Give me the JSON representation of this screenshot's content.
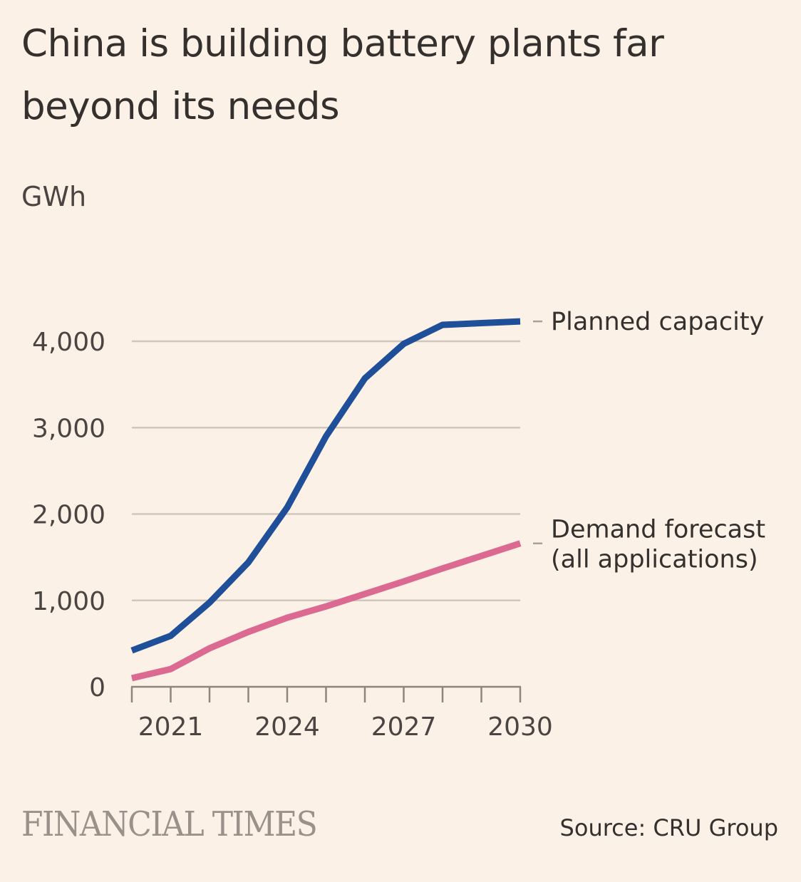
{
  "header": {
    "title": "China is building battery plants far beyond its needs",
    "unit": "GWh"
  },
  "footer": {
    "logo": "FINANCIAL TIMES",
    "source": "Source: CRU Group"
  },
  "colors": {
    "background": "#fcf1e7",
    "planned_capacity": "#1f4f98",
    "demand_forecast": "#db6991",
    "gridline": "#cfc7bb",
    "axis": "#8e857c",
    "leader": "#a8a19a"
  },
  "chart_data": {
    "type": "line",
    "title": "China is building battery plants far beyond its needs",
    "xlabel": "",
    "ylabel": "GWh",
    "x": [
      2020,
      2021,
      2022,
      2023,
      2024,
      2025,
      2026,
      2027,
      2028,
      2029,
      2030
    ],
    "xlim": [
      2020,
      2030
    ],
    "ylim": [
      0,
      4000
    ],
    "yticks": [
      0,
      1000,
      2000,
      3000,
      4000
    ],
    "ytick_labels": [
      "0",
      "1,000",
      "2,000",
      "3,000",
      "4,000"
    ],
    "xtick_labels": [
      {
        "value": 2021,
        "label": "2021"
      },
      {
        "value": 2024,
        "label": "2024"
      },
      {
        "value": 2027,
        "label": "2027"
      },
      {
        "value": 2030,
        "label": "2030"
      }
    ],
    "grid": true,
    "legend": "direct labels at right end of lines",
    "series": [
      {
        "name": "Planned capacity",
        "label_lines": [
          "Planned capacity"
        ],
        "color": "#1f4f98",
        "values": [
          420,
          590,
          975,
          1440,
          2075,
          2900,
          3570,
          3970,
          4190,
          4210,
          4230
        ]
      },
      {
        "name": "Demand forecast (all applications)",
        "label_lines": [
          "Demand forecast",
          "(all applications)"
        ],
        "color": "#db6991",
        "values": [
          100,
          205,
          445,
          635,
          800,
          930,
          1075,
          1220,
          1370,
          1515,
          1660
        ]
      }
    ],
    "source": "Source: CRU Group"
  }
}
